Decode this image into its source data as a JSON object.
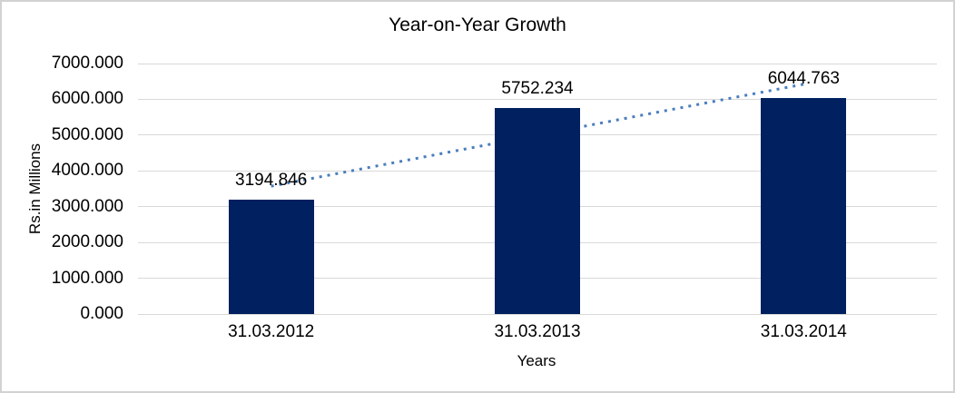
{
  "chart_data": {
    "type": "bar",
    "title": "Year-on-Year Growth",
    "xlabel": "Years",
    "ylabel": "Rs.in Millions",
    "categories": [
      "31.03.2012",
      "31.03.2013",
      "31.03.2014"
    ],
    "values": [
      3194.846,
      5752.234,
      6044.763
    ],
    "data_labels": [
      "3194.846",
      "5752.234",
      "6044.763"
    ],
    "ylim": [
      0,
      7000
    ],
    "ytick_step": 1000,
    "ytick_labels": [
      "0.000",
      "1000.000",
      "2000.000",
      "3000.000",
      "4000.000",
      "5000.000",
      "6000.000",
      "7000.000"
    ],
    "grid": true,
    "legend": "none",
    "bar_color": "#002060",
    "gridline_color": "#d9d9d9",
    "text_color": "#000000",
    "trendline": {
      "type": "linear",
      "style": "dotted",
      "color": "#4a7ebc"
    }
  }
}
